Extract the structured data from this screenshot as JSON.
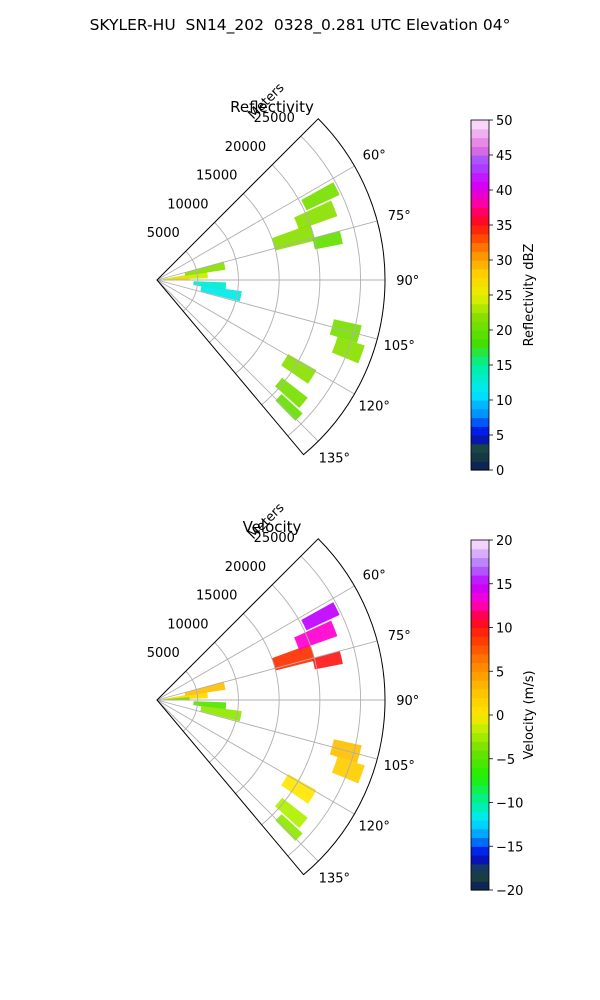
{
  "figure": {
    "suptitle": "SKYLER-HU  SN14_202  0328_0.281 UTC Elevation 04°"
  },
  "chart_data": [
    {
      "type": "heatmap",
      "projection": "polar-sector",
      "title": "Reflectivity",
      "radial_label": "Meters",
      "radial_ticks": [
        5000,
        10000,
        15000,
        20000,
        25000
      ],
      "radial_tick_labels": [
        "5000",
        "10000",
        "15000",
        "20000",
        "25000"
      ],
      "rlim": [
        0,
        28000
      ],
      "theta_ticks": [
        60,
        75,
        90,
        105,
        120,
        135
      ],
      "theta_tick_labels": [
        "60°",
        "75°",
        "90°",
        "105°",
        "120°",
        "135°"
      ],
      "theta_range_deg": [
        45,
        140
      ],
      "grid": true,
      "colorbar": {
        "label": "Reflectivity dBZ",
        "range": [
          0,
          50
        ],
        "ticks": [
          0,
          5,
          10,
          15,
          20,
          25,
          30,
          35,
          40,
          45,
          50
        ],
        "tick_labels": [
          "0",
          "5",
          "10",
          "15",
          "20",
          "25",
          "30",
          "35",
          "40",
          "45",
          "50"
        ],
        "stops": [
          {
            "value": 0,
            "color": "#0a1a5a"
          },
          {
            "value": 3,
            "color": "#1c4a3a"
          },
          {
            "value": 5,
            "color": "#0000e0"
          },
          {
            "value": 8,
            "color": "#0090ff"
          },
          {
            "value": 11,
            "color": "#00e8ff"
          },
          {
            "value": 15,
            "color": "#00f0a0"
          },
          {
            "value": 18,
            "color": "#40e000"
          },
          {
            "value": 22,
            "color": "#8ae000"
          },
          {
            "value": 25,
            "color": "#e8f000"
          },
          {
            "value": 28,
            "color": "#ffd000"
          },
          {
            "value": 31,
            "color": "#ff9000"
          },
          {
            "value": 34,
            "color": "#ff3000"
          },
          {
            "value": 36,
            "color": "#ff0030"
          },
          {
            "value": 38,
            "color": "#ff00a0"
          },
          {
            "value": 41,
            "color": "#d000ff"
          },
          {
            "value": 44,
            "color": "#a050ff"
          },
          {
            "value": 46,
            "color": "#e070e0"
          },
          {
            "value": 50,
            "color": "#ffe8ff"
          }
        ]
      },
      "echoes": [
        {
          "az": 84,
          "r": 3500,
          "dr": 5500,
          "da": 8,
          "value": 24
        },
        {
          "az": 78,
          "r": 6000,
          "dr": 5000,
          "da": 7,
          "value": 22
        },
        {
          "az": 88,
          "r": 2500,
          "dr": 3000,
          "da": 6,
          "value": 28
        },
        {
          "az": 95,
          "r": 6500,
          "dr": 4000,
          "da": 6,
          "value": 13
        },
        {
          "az": 101,
          "r": 8000,
          "dr": 5000,
          "da": 7,
          "value": 12
        },
        {
          "az": 73,
          "r": 17500,
          "dr": 5000,
          "da": 6,
          "value": 22
        },
        {
          "az": 68,
          "r": 21000,
          "dr": 5000,
          "da": 5,
          "value": 22
        },
        {
          "az": 63,
          "r": 22500,
          "dr": 4500,
          "da": 4,
          "value": 21
        },
        {
          "az": 77,
          "r": 21500,
          "dr": 3500,
          "da": 4,
          "value": 20
        },
        {
          "az": 105,
          "r": 24000,
          "dr": 3500,
          "da": 5,
          "value": 21
        },
        {
          "az": 110,
          "r": 25000,
          "dr": 3500,
          "da": 5,
          "value": 22
        },
        {
          "az": 122,
          "r": 20500,
          "dr": 4000,
          "da": 5,
          "value": 22
        },
        {
          "az": 130,
          "r": 21500,
          "dr": 4000,
          "da": 4,
          "value": 21
        },
        {
          "az": 134,
          "r": 22500,
          "dr": 3500,
          "da": 3,
          "value": 20
        }
      ]
    },
    {
      "type": "heatmap",
      "projection": "polar-sector",
      "title": "Velocity",
      "radial_label": "Meters",
      "radial_ticks": [
        5000,
        10000,
        15000,
        20000,
        25000
      ],
      "radial_tick_labels": [
        "5000",
        "10000",
        "15000",
        "20000",
        "25000"
      ],
      "rlim": [
        0,
        28000
      ],
      "theta_ticks": [
        60,
        75,
        90,
        105,
        120,
        135
      ],
      "theta_tick_labels": [
        "60°",
        "75°",
        "90°",
        "105°",
        "120°",
        "135°"
      ],
      "theta_range_deg": [
        45,
        140
      ],
      "grid": true,
      "colorbar": {
        "label": "Velocity (m/s)",
        "range": [
          -20,
          20
        ],
        "ticks": [
          -20,
          -15,
          -10,
          -5,
          0,
          5,
          10,
          15,
          20
        ],
        "tick_labels": [
          "−20",
          "−15",
          "−10",
          "−5",
          "0",
          "5",
          "10",
          "15",
          "20"
        ],
        "stops": [
          {
            "value": -20,
            "color": "#0a1a5a"
          },
          {
            "value": -18,
            "color": "#1c4a3a"
          },
          {
            "value": -16,
            "color": "#0000e0"
          },
          {
            "value": -14,
            "color": "#0090ff"
          },
          {
            "value": -12,
            "color": "#00e8ff"
          },
          {
            "value": -10,
            "color": "#00f0a0"
          },
          {
            "value": -7,
            "color": "#20f000"
          },
          {
            "value": -4,
            "color": "#70e000"
          },
          {
            "value": -2,
            "color": "#b0f000"
          },
          {
            "value": 0,
            "color": "#ffe600"
          },
          {
            "value": 3,
            "color": "#ffc000"
          },
          {
            "value": 6,
            "color": "#ff8000"
          },
          {
            "value": 9,
            "color": "#ff3000"
          },
          {
            "value": 11,
            "color": "#ff0030"
          },
          {
            "value": 13,
            "color": "#ff00d0"
          },
          {
            "value": 15,
            "color": "#c000ff"
          },
          {
            "value": 17,
            "color": "#b070ff"
          },
          {
            "value": 20,
            "color": "#ffe8ff"
          }
        ]
      },
      "echoes": [
        {
          "az": 84,
          "r": 3500,
          "dr": 5500,
          "da": 8,
          "value": 1
        },
        {
          "az": 78,
          "r": 6000,
          "dr": 5000,
          "da": 7,
          "value": 3
        },
        {
          "az": 88,
          "r": 2500,
          "dr": 3000,
          "da": 6,
          "value": -4
        },
        {
          "az": 95,
          "r": 6500,
          "dr": 4000,
          "da": 6,
          "value": -5
        },
        {
          "az": 101,
          "r": 8000,
          "dr": 5000,
          "da": 7,
          "value": -3
        },
        {
          "az": 73,
          "r": 17500,
          "dr": 5000,
          "da": 6,
          "value": 9
        },
        {
          "az": 68,
          "r": 21000,
          "dr": 5000,
          "da": 5,
          "value": 13
        },
        {
          "az": 63,
          "r": 22500,
          "dr": 4500,
          "da": 4,
          "value": 15
        },
        {
          "az": 77,
          "r": 21500,
          "dr": 3500,
          "da": 4,
          "value": 10
        },
        {
          "az": 105,
          "r": 24000,
          "dr": 3500,
          "da": 5,
          "value": 3
        },
        {
          "az": 110,
          "r": 25000,
          "dr": 3500,
          "da": 5,
          "value": 2
        },
        {
          "az": 122,
          "r": 20500,
          "dr": 4000,
          "da": 5,
          "value": 0
        },
        {
          "az": 130,
          "r": 21500,
          "dr": 4000,
          "da": 4,
          "value": -2
        },
        {
          "az": 134,
          "r": 22500,
          "dr": 3500,
          "da": 3,
          "value": -3
        }
      ]
    }
  ]
}
